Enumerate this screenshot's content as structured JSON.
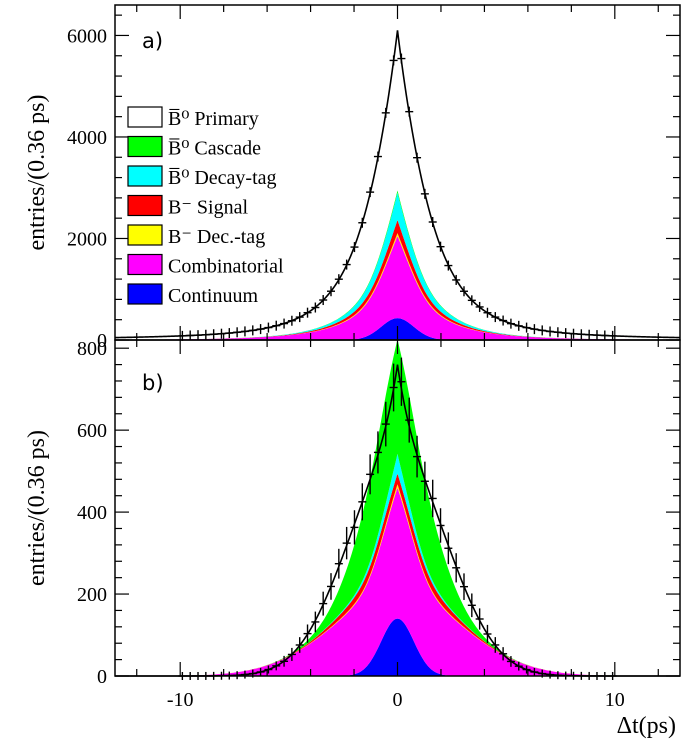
{
  "chart_data": [
    {
      "type": "area",
      "panel_label": "a)",
      "ylabel": "entries/(0.36 ps)",
      "xlim": [
        -13,
        13
      ],
      "ylim": [
        0,
        6600
      ],
      "x_ticks": [
        -10,
        0,
        10
      ],
      "y_ticks": [
        0,
        2000,
        4000,
        6000
      ],
      "y_tick_labels": [
        "0",
        "2000",
        "4000",
        "6000"
      ],
      "legend": {
        "placement": "left",
        "entries": [
          {
            "name": "B̅⁰ Primary",
            "color": "#ffffff"
          },
          {
            "name": "B̅⁰ Cascade",
            "color": "#00ff00"
          },
          {
            "name": "B̅⁰ Decay-tag",
            "color": "#00ffff"
          },
          {
            "name": "B⁻ Signal",
            "color": "#ff0000"
          },
          {
            "name": "B⁻ Dec.-tag",
            "color": "#ffff00"
          },
          {
            "name": "Combinatorial",
            "color": "#ff00ff"
          },
          {
            "name": "Continuum",
            "color": "#0000ff"
          }
        ]
      },
      "components": [
        {
          "name": "Continuum",
          "color": "#0000ff",
          "peak": 430,
          "width": 0.9,
          "tail": 0.02
        },
        {
          "name": "Combinatorial",
          "color": "#ff00ff",
          "peak": 1620,
          "width": 1.8,
          "tail": 0.03
        },
        {
          "name": "B- Dec.-tag",
          "color": "#ffff00",
          "peak": 60,
          "width": 1.8,
          "tail": 0.0
        },
        {
          "name": "B- Signal",
          "color": "#ff0000",
          "peak": 250,
          "width": 1.6,
          "tail": 0.0
        },
        {
          "name": "B0bar Decay-tag",
          "color": "#00ffff",
          "peak": 520,
          "width": 1.5,
          "tail": 0.0
        },
        {
          "name": "B0bar Cascade",
          "color": "#00ff00",
          "peak": 40,
          "width": 1.6,
          "tail": 0.0
        },
        {
          "name": "B0bar Primary",
          "color": "#ffffff",
          "peak": 3180,
          "width": 1.35,
          "tail": 0.0
        }
      ],
      "fit_total": {
        "peak": 6100,
        "width": 1.45
      },
      "points": {
        "x_step": 0.36,
        "x_range": [
          -9.9,
          9.9
        ],
        "values": []
      }
    },
    {
      "type": "area",
      "panel_label": "b)",
      "ylabel": "entries/(0.36 ps)",
      "xlabel": "Δt(ps)",
      "xlim": [
        -13,
        13
      ],
      "ylim": [
        0,
        820
      ],
      "x_ticks": [
        -10,
        0,
        10
      ],
      "x_tick_labels": [
        "-10",
        "0",
        "10"
      ],
      "y_ticks": [
        0,
        200,
        400,
        600,
        800
      ],
      "y_tick_labels": [
        "0",
        "200",
        "400",
        "600",
        "800"
      ],
      "components": [
        {
          "name": "Continuum",
          "color": "#0000ff",
          "peak": 140,
          "width": 0.7
        },
        {
          "name": "Combinatorial",
          "color": "#ff00ff",
          "peak": 175,
          "width": 1.2,
          "broad_peak": 200,
          "broad_width": 3.2
        },
        {
          "name": "B- Dec.-tag",
          "color": "#ffff00",
          "peak": 8,
          "width": 1.5
        },
        {
          "name": "B- Signal",
          "color": "#ff0000",
          "peak": 25,
          "width": 1.7
        },
        {
          "name": "B0bar Decay-tag",
          "color": "#00ffff",
          "peak": 45,
          "width": 1.2
        },
        {
          "name": "B0bar Cascade",
          "color": "#00ff00",
          "peak": 280,
          "width": 1.45
        },
        {
          "name": "B0bar Primary",
          "color": "#ffffff",
          "peak": 95,
          "width": 2.4,
          "broad_peak": 0,
          "broad_width": 4
        }
      ],
      "fit_total": {
        "peak": 760
      }
    }
  ]
}
